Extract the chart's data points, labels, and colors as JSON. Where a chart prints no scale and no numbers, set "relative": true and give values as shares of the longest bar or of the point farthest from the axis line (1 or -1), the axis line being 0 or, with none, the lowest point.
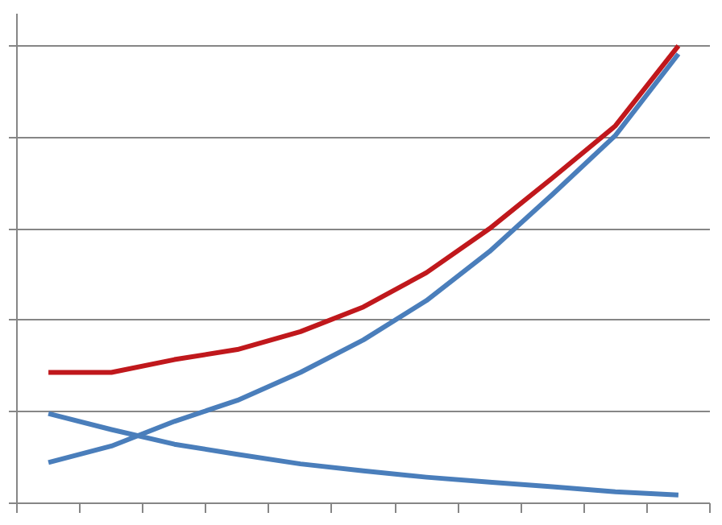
{
  "chart_data": {
    "type": "line",
    "relative": true,
    "grid": "y",
    "tick_labels": false,
    "categories": [
      null,
      null,
      null,
      null,
      null,
      null,
      null,
      null,
      null,
      null,
      null
    ],
    "series": [
      {
        "color": "#c0181c",
        "values": [
          0.286,
          0.286,
          0.314,
          0.336,
          0.375,
          0.429,
          0.504,
          0.6,
          0.711,
          0.825,
          1
        ]
      },
      {
        "color": "#4a7ebb",
        "values": [
          0.089,
          0.125,
          0.179,
          0.225,
          0.286,
          0.357,
          0.443,
          0.55,
          0.675,
          0.804,
          0.982
        ]
      },
      {
        "color": "#4a7ebb",
        "values": [
          0.196,
          0.161,
          0.129,
          0.107,
          0.086,
          0.071,
          0.057,
          0.046,
          0.036,
          0.025,
          0.018
        ]
      }
    ]
  }
}
